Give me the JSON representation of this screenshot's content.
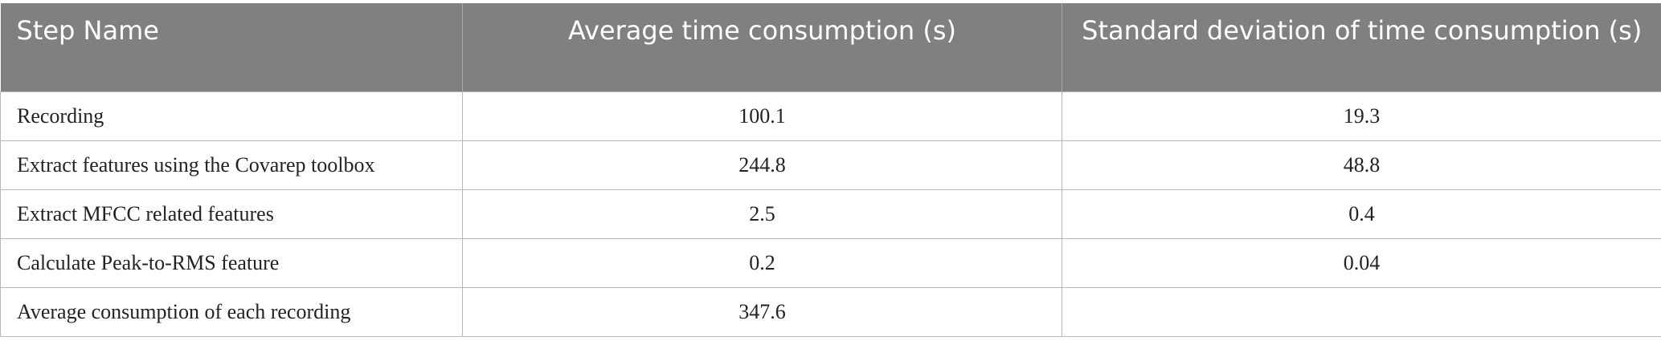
{
  "table": {
    "header": [
      "Step Name",
      "Average time consumption (s)",
      "Standard deviation of time consumption (s)"
    ],
    "rows": [
      [
        "Recording",
        "100.1",
        "19.3"
      ],
      [
        "Extract features using the Covarep toolbox",
        "244.8",
        "48.8"
      ],
      [
        "Extract MFCC related features",
        "2.5",
        "0.4"
      ],
      [
        "Calculate Peak-to-RMS feature",
        "0.2",
        "0.04"
      ],
      [
        "Average consumption of each recording",
        "347.6",
        null
      ]
    ]
  }
}
